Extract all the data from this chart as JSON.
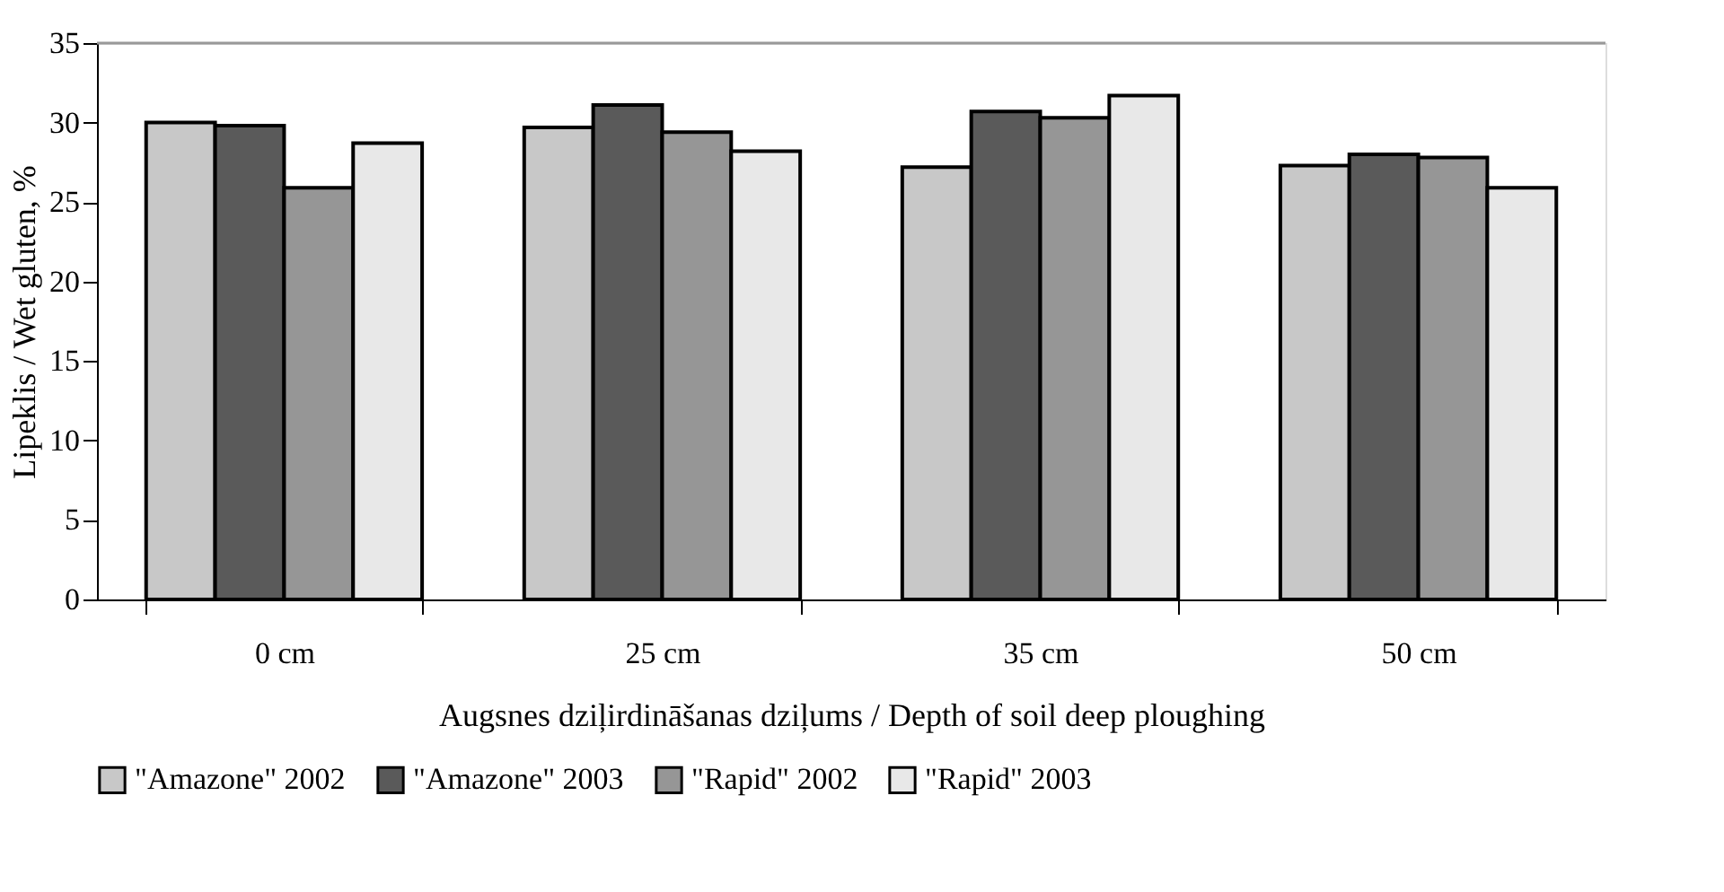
{
  "chart_data": {
    "type": "bar",
    "xlabel": "Augsnes dziļirdināšanas dziļums / Depth of soil deep ploughing",
    "ylabel": "Lipeklis / Wet gluten, %",
    "categories": [
      "0 cm",
      "25 cm",
      "35 cm",
      "50 cm"
    ],
    "series": [
      {
        "name": "\"Amazone\" 2002",
        "color": "#c8c8c8",
        "values": [
          30.0,
          29.7,
          27.2,
          27.3
        ]
      },
      {
        "name": "\"Amazone\" 2003",
        "color": "#5a5a5a",
        "values": [
          29.8,
          31.1,
          30.7,
          28.0
        ]
      },
      {
        "name": "\"Rapid\" 2002",
        "color": "#969696",
        "values": [
          25.9,
          29.4,
          30.3,
          27.8
        ]
      },
      {
        "name": "\"Rapid\" 2003",
        "color": "#e8e8e8",
        "values": [
          28.7,
          28.2,
          31.7,
          25.9
        ]
      }
    ],
    "ylim": [
      0,
      35
    ],
    "yticks": [
      0,
      5,
      10,
      15,
      20,
      25,
      30,
      35
    ],
    "grid": false,
    "legend": "bottom"
  }
}
